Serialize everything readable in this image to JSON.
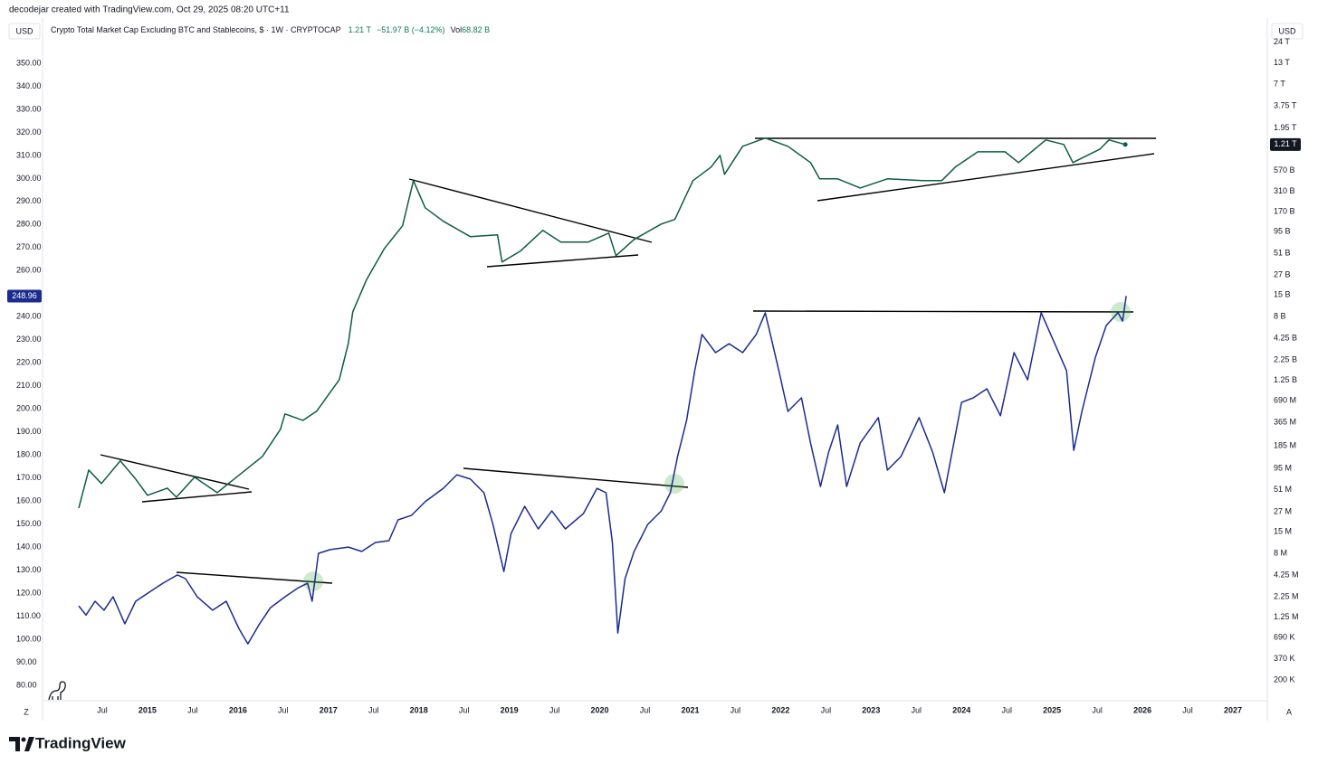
{
  "header": {
    "credit": "decodejar created with TradingView.com, Oct 29, 2025 08:20 UTC+11",
    "currency_left": "USD",
    "currency_right": "USD",
    "symbol": "Crypto Total Market Cap Excluding BTC and Stablecoins, $ · 1W · CRYPTOCAP",
    "last": "1.21 T",
    "change": "−51.97 B (−4.12%)",
    "vol_label": "Vol",
    "vol": "68.82 B"
  },
  "chart_data": {
    "type": "line",
    "xlim": [
      2013.84,
      2027.38
    ],
    "xticks": [
      {
        "value": 2014.5,
        "label": "Jul"
      },
      2015,
      {
        "value": 2015.5,
        "label": "Jul"
      },
      2016,
      {
        "value": 2016.5,
        "label": "Jul"
      },
      2017,
      {
        "value": 2017.5,
        "label": "Jul"
      },
      2018,
      {
        "value": 2018.5,
        "label": "Jul"
      },
      2019,
      {
        "value": 2019.5,
        "label": "Jul"
      },
      2020,
      {
        "value": 2020.5,
        "label": "Jul"
      },
      2021,
      {
        "value": 2021.5,
        "label": "Jul"
      },
      2022,
      {
        "value": 2022.5,
        "label": "Jul"
      },
      2023,
      {
        "value": 2023.5,
        "label": "Jul"
      },
      2024,
      {
        "value": 2024.5,
        "label": "Jul"
      },
      2025,
      {
        "value": 2025.5,
        "label": "Jul"
      },
      2026,
      {
        "value": 2026.5,
        "label": "Jul"
      },
      2027
    ],
    "ylim": [
      74.5,
      359.8
    ],
    "yticks": [
      {
        "value": 80,
        "label": "80.00"
      },
      {
        "value": 90,
        "label": "90.00"
      },
      {
        "value": 100,
        "label": "100.00"
      },
      {
        "value": 110,
        "label": "110.00"
      },
      {
        "value": 120,
        "label": "120.00"
      },
      {
        "value": 130,
        "label": "130.00"
      },
      {
        "value": 140,
        "label": "140.00"
      },
      {
        "value": 150,
        "label": "150.00"
      },
      {
        "value": 160,
        "label": "160.00"
      },
      {
        "value": 170,
        "label": "170.00"
      },
      {
        "value": 180,
        "label": "180.00"
      },
      {
        "value": 190,
        "label": "190.00"
      },
      {
        "value": 200,
        "label": "200.00"
      },
      {
        "value": 210,
        "label": "210.00"
      },
      {
        "value": 220,
        "label": "220.00"
      },
      {
        "value": 230,
        "label": "230.00"
      },
      {
        "value": 240,
        "label": "240.00"
      },
      {
        "value": 250,
        "label": "250.00"
      },
      {
        "value": 260,
        "label": "260.00"
      },
      {
        "value": 270,
        "label": "270.00"
      },
      {
        "value": 280,
        "label": "280.00"
      },
      {
        "value": 290,
        "label": "290.00"
      },
      {
        "value": 300,
        "label": "300.00"
      },
      {
        "value": 310,
        "label": "310.00"
      },
      {
        "value": 320,
        "label": "320.00"
      },
      {
        "value": 330,
        "label": "330.00"
      },
      {
        "value": 340,
        "label": "340.00"
      },
      {
        "value": 350,
        "label": "350.00"
      }
    ],
    "y_marker": 248.96,
    "y2scale": "log",
    "y2lim": [
      118000,
      25000000000000
    ],
    "y2ticks": [
      {
        "value": 24000000000000,
        "label": "24 T"
      },
      {
        "value": 13000000000000,
        "label": "13 T"
      },
      {
        "value": 7000000000000,
        "label": "7 T"
      },
      {
        "value": 3750000000000,
        "label": "3.75 T"
      },
      {
        "value": 1950000000000,
        "label": "1.95 T"
      },
      {
        "value": 570000000000,
        "label": "570 B"
      },
      {
        "value": 310000000000,
        "label": "310 B"
      },
      {
        "value": 170000000000,
        "label": "170 B"
      },
      {
        "value": 95000000000,
        "label": "95 B"
      },
      {
        "value": 51000000000,
        "label": "51 B"
      },
      {
        "value": 27000000000,
        "label": "27 B"
      },
      {
        "value": 15000000000,
        "label": "15 B"
      },
      {
        "value": 8000000000,
        "label": "8 B"
      },
      {
        "value": 4250000000,
        "label": "4.25 B"
      },
      {
        "value": 2250000000,
        "label": "2.25 B"
      },
      {
        "value": 1250000000,
        "label": "1.25 B"
      },
      {
        "value": 690000000,
        "label": "690 M"
      },
      {
        "value": 365000000,
        "label": "365 M"
      },
      {
        "value": 185000000,
        "label": "185 M"
      },
      {
        "value": 95000000,
        "label": "95 M"
      },
      {
        "value": 51000000,
        "label": "51 M"
      },
      {
        "value": 27000000,
        "label": "27 M"
      },
      {
        "value": 15000000,
        "label": "15 M"
      },
      {
        "value": 8000000,
        "label": "8 M"
      },
      {
        "value": 4250000,
        "label": "4.25 M"
      },
      {
        "value": 2250000,
        "label": "2.25 M"
      },
      {
        "value": 1250000,
        "label": "1.25 M"
      },
      {
        "value": 690000,
        "label": "690 K"
      },
      {
        "value": 370000,
        "label": "370 K"
      },
      {
        "value": 200000,
        "label": "200 K"
      }
    ],
    "y2_marker": {
      "value": 1210000000000,
      "label": "1.21 T"
    },
    "grid": false,
    "series": [
      {
        "color": "#0d5c45",
        "axis": "y2",
        "x": [
          2014.24,
          2014.35,
          2014.49,
          2014.7,
          2014.87,
          2015.0,
          2015.22,
          2015.32,
          2015.52,
          2015.77,
          2016.02,
          2016.27,
          2016.47,
          2016.52,
          2016.72,
          2016.87,
          2017.12,
          2017.22,
          2017.27,
          2017.42,
          2017.62,
          2017.82,
          2017.94,
          2018.07,
          2018.27,
          2018.57,
          2018.87,
          2018.92,
          2019.12,
          2019.37,
          2019.57,
          2019.87,
          2020.1,
          2020.18,
          2020.38,
          2020.68,
          2020.83,
          2021.03,
          2021.23,
          2021.33,
          2021.38,
          2021.58,
          2021.83,
          2022.08,
          2022.33,
          2022.43,
          2022.63,
          2022.88,
          2023.18,
          2023.58,
          2023.78,
          2023.93,
          2024.18,
          2024.48,
          2024.63,
          2024.93,
          2025.13,
          2025.23,
          2025.53,
          2025.63,
          2025.81
        ],
        "values": [
          30100000,
          91000000,
          61400000,
          119000000,
          70000000,
          43600000,
          53700000,
          41300000,
          73800000,
          47100000,
          79800000,
          135000000,
          299000000,
          468000000,
          388000000,
          506000000,
          1270000000,
          3660000000,
          9200000000,
          23200000000,
          58300000000,
          113000000000,
          422000000000,
          191000000000,
          129000000000,
          82200000000,
          86700000000,
          39300000000,
          53800000000,
          98900000000,
          70200000000,
          70200000000,
          91400000000,
          47200000000,
          75900000000,
          119000000000,
          136000000000,
          422000000000,
          627000000000,
          883000000000,
          507000000000,
          1150000000000,
          1460000000000,
          1150000000000,
          714000000000,
          445000000000,
          445000000000,
          341000000000,
          445000000000,
          422000000000,
          422000000000,
          627000000000,
          979000000000,
          979000000000,
          714000000000,
          1380000000000,
          1210000000000,
          714000000000,
          1060000000000,
          1380000000000,
          1210000000000
        ]
      },
      {
        "color": "#1b2c8f",
        "axis": "y",
        "x": [
          2014.24,
          2014.32,
          2014.42,
          2014.52,
          2014.62,
          2014.75,
          2014.87,
          2015.02,
          2015.17,
          2015.33,
          2015.42,
          2015.55,
          2015.72,
          2015.87,
          2016.01,
          2016.11,
          2016.24,
          2016.36,
          2016.52,
          2016.67,
          2016.77,
          2016.82,
          2016.89,
          2017.02,
          2017.22,
          2017.37,
          2017.52,
          2017.67,
          2017.77,
          2017.92,
          2018.07,
          2018.27,
          2018.42,
          2018.57,
          2018.72,
          2018.82,
          2018.94,
          2019.02,
          2019.17,
          2019.32,
          2019.47,
          2019.62,
          2019.82,
          2019.97,
          2020.07,
          2020.14,
          2020.2,
          2020.28,
          2020.38,
          2020.53,
          2020.68,
          2020.78,
          2020.86,
          2020.96,
          2021.05,
          2021.13,
          2021.28,
          2021.43,
          2021.58,
          2021.73,
          2021.83,
          2021.98,
          2022.08,
          2022.23,
          2022.33,
          2022.44,
          2022.53,
          2022.63,
          2022.73,
          2022.88,
          2023.08,
          2023.18,
          2023.33,
          2023.53,
          2023.68,
          2023.81,
          2024.0,
          2024.13,
          2024.28,
          2024.43,
          2024.58,
          2024.73,
          2024.88,
          2025.03,
          2025.16,
          2025.24,
          2025.33,
          2025.48,
          2025.6,
          2025.73,
          2025.78,
          2025.82
        ],
        "values": [
          114.5,
          110.5,
          116.5,
          112.6,
          118.4,
          106.7,
          116.5,
          120.4,
          124.3,
          127.9,
          126.3,
          118.4,
          112.6,
          116.5,
          104.7,
          98.0,
          106.7,
          113.7,
          118.4,
          122.4,
          124.3,
          116.5,
          137.3,
          138.9,
          140.0,
          138.1,
          142.0,
          142.8,
          151.8,
          153.8,
          159.7,
          165.5,
          171.4,
          169.5,
          163.6,
          149.8,
          129.4,
          145.9,
          157.7,
          147.9,
          155.7,
          147.9,
          154.6,
          165.5,
          163.6,
          142.0,
          102.7,
          126.3,
          138.1,
          149.8,
          155.7,
          163.6,
          179.3,
          195.0,
          216.6,
          232.3,
          224.4,
          228.3,
          224.4,
          232.3,
          241.7,
          216.6,
          198.9,
          204.8,
          185.2,
          166.3,
          181.2,
          193.0,
          166.3,
          185.2,
          196.2,
          173.4,
          179.3,
          196.2,
          181.2,
          163.6,
          202.8,
          204.8,
          208.7,
          197.0,
          224.4,
          212.6,
          241.7,
          228.3,
          216.6,
          182.0,
          198.9,
          222.4,
          236.2,
          241.8,
          238.1,
          248.96
        ]
      }
    ]
  },
  "footer": {
    "brand": "TradingView",
    "left_button": "Z",
    "right_button": "A"
  }
}
